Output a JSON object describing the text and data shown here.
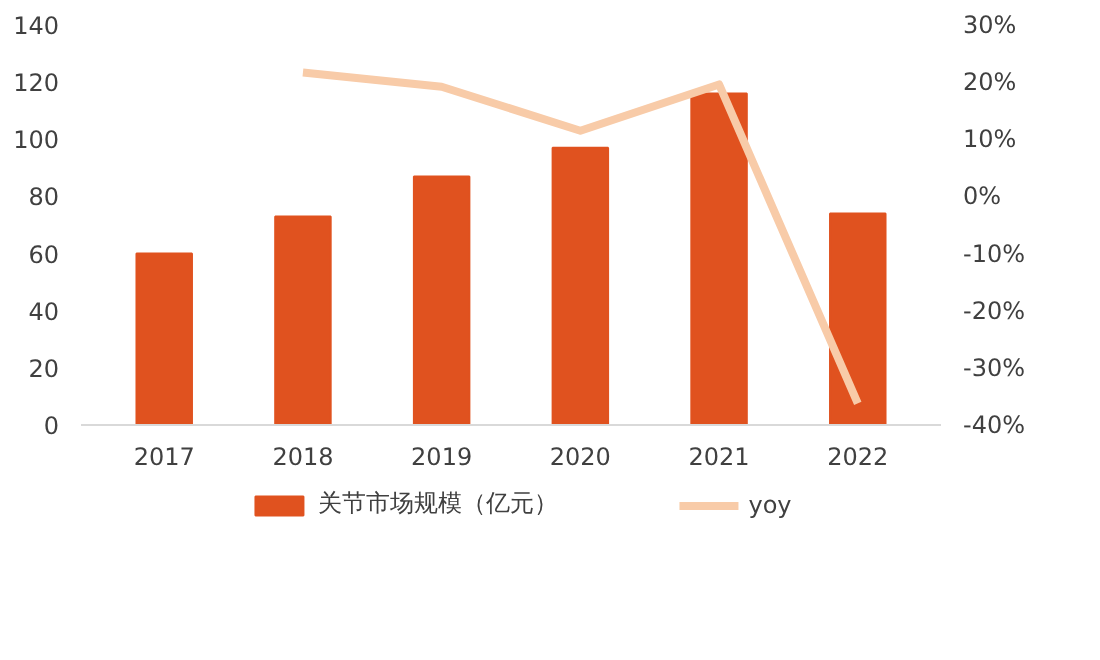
{
  "chart_data": {
    "type": "bar",
    "categories": [
      "2017",
      "2018",
      "2019",
      "2020",
      "2021",
      "2022"
    ],
    "series": [
      {
        "name": "关节市场规模（亿元）",
        "color": "#e0521f",
        "values": [
          60,
          73,
          87,
          97,
          116,
          74
        ]
      },
      {
        "name": "yoy",
        "type": "line",
        "axis": "y2",
        "color": "#f8cba8",
        "values": [
          null,
          21.7,
          19.2,
          11.5,
          19.6,
          -36.2
        ]
      }
    ],
    "ylim": [
      0,
      140
    ],
    "yticks": [
      0,
      20,
      40,
      60,
      80,
      100,
      120,
      140
    ],
    "y2lim": [
      -40,
      30
    ],
    "y2ticks": [
      {
        "value": -40,
        "label": "-40%"
      },
      {
        "value": -30,
        "label": "-30%"
      },
      {
        "value": -20,
        "label": "-20%"
      },
      {
        "value": -10,
        "label": "-10%"
      },
      {
        "value": 0,
        "label": "0%"
      },
      {
        "value": 10,
        "label": "10%"
      },
      {
        "value": 20,
        "label": "20%"
      },
      {
        "value": 30,
        "label": "30%"
      }
    ],
    "grid": false,
    "legend": "bottom"
  }
}
